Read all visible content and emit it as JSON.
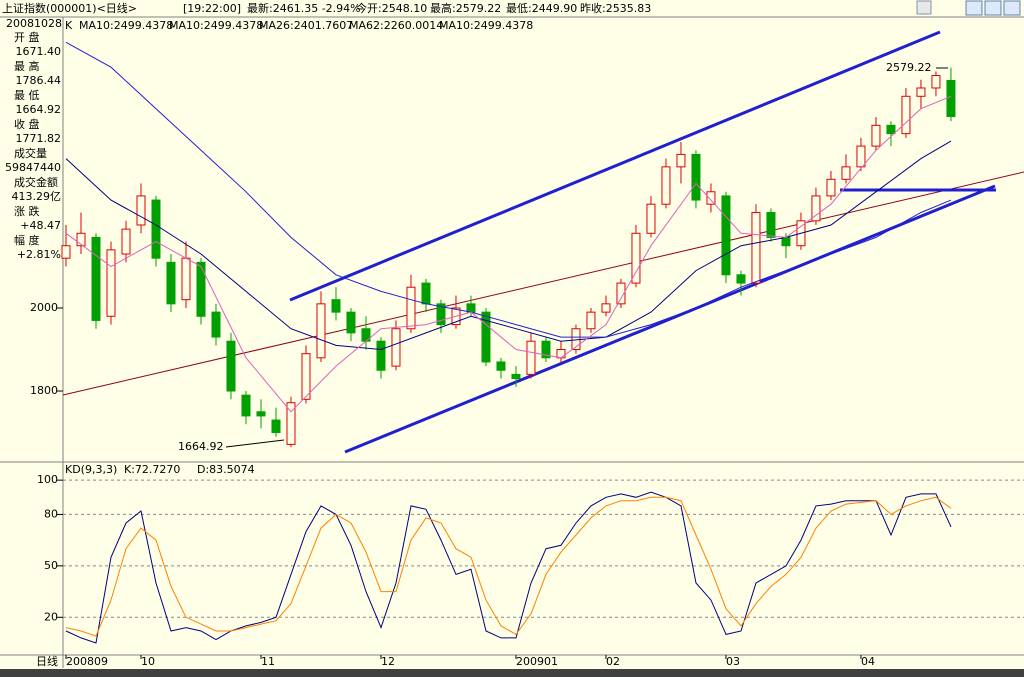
{
  "header": {
    "title": "上证指数(000001)<日线>",
    "time": "[19:22:00]",
    "latest": "最新:2461.35 -2.94%",
    "open": "今开:2548.10",
    "high": "最高:2579.22",
    "low": "最低:2449.90",
    "prev_close": "昨收:2535.83"
  },
  "info_panel": {
    "date": "20081028",
    "rows": [
      [
        "开 盘",
        "1671.40"
      ],
      [
        "最 高",
        "1786.44"
      ],
      [
        "最 低",
        "1664.92"
      ],
      [
        "收 盘",
        "1771.82"
      ],
      [
        "成交量",
        "59847440"
      ],
      [
        "成交金额",
        "413.29亿"
      ],
      [
        "涨 跌",
        "+48.47"
      ],
      [
        "幅 度",
        "+2.81%"
      ]
    ]
  },
  "x_axis_label": "日线",
  "chart_data": [
    {
      "type": "candlestick",
      "legend_prefix": "K",
      "legend_other": [
        {
          "name": "MA10:2499.4378",
          "color": "#000000"
        },
        {
          "name": "MA10:2499.4378",
          "color": "#ff8000"
        }
      ],
      "up_color": "#e00000",
      "down_color": "#00a000",
      "candles": [
        [
          2120,
          2200,
          2100,
          2150
        ],
        [
          2150,
          2230,
          2130,
          2180
        ],
        [
          2170,
          2180,
          1950,
          1970
        ],
        [
          1980,
          2160,
          1960,
          2140
        ],
        [
          2130,
          2210,
          2110,
          2190
        ],
        [
          2200,
          2300,
          2180,
          2270
        ],
        [
          2260,
          2270,
          2100,
          2120
        ],
        [
          2110,
          2130,
          1990,
          2010
        ],
        [
          2020,
          2160,
          2000,
          2120
        ],
        [
          2110,
          2120,
          1960,
          1980
        ],
        [
          1990,
          2010,
          1910,
          1930
        ],
        [
          1920,
          1940,
          1780,
          1800
        ],
        [
          1790,
          1800,
          1720,
          1740
        ],
        [
          1750,
          1780,
          1710,
          1740
        ],
        [
          1730,
          1760,
          1690,
          1700
        ],
        [
          1671.4,
          1786.44,
          1664.92,
          1771.82
        ],
        [
          1780,
          1910,
          1770,
          1890
        ],
        [
          1880,
          2040,
          1870,
          2010
        ],
        [
          2020,
          2050,
          1970,
          1990
        ],
        [
          1990,
          2000,
          1920,
          1940
        ],
        [
          1950,
          1980,
          1900,
          1920
        ],
        [
          1920,
          1930,
          1830,
          1850
        ],
        [
          1860,
          1970,
          1850,
          1950
        ],
        [
          1950,
          2080,
          1940,
          2050
        ],
        [
          2060,
          2070,
          1990,
          2010
        ],
        [
          2010,
          2020,
          1940,
          1960
        ],
        [
          1960,
          2030,
          1950,
          2000
        ],
        [
          2010,
          2030,
          1980,
          1990
        ],
        [
          1990,
          2000,
          1860,
          1870
        ],
        [
          1870,
          1880,
          1830,
          1850
        ],
        [
          1840,
          1860,
          1810,
          1830
        ],
        [
          1840,
          1940,
          1830,
          1920
        ],
        [
          1920,
          1930,
          1870,
          1880
        ],
        [
          1880,
          1920,
          1870,
          1900
        ],
        [
          1900,
          1960,
          1890,
          1950
        ],
        [
          1950,
          2000,
          1940,
          1990
        ],
        [
          1990,
          2030,
          1980,
          2010
        ],
        [
          2010,
          2070,
          2000,
          2060
        ],
        [
          2060,
          2200,
          2050,
          2180
        ],
        [
          2180,
          2270,
          2170,
          2250
        ],
        [
          2250,
          2360,
          2240,
          2340
        ],
        [
          2340,
          2400,
          2300,
          2370
        ],
        [
          2370,
          2380,
          2240,
          2260
        ],
        [
          2250,
          2300,
          2230,
          2280
        ],
        [
          2270,
          2280,
          2060,
          2080
        ],
        [
          2080,
          2090,
          2030,
          2060
        ],
        [
          2060,
          2250,
          2050,
          2230
        ],
        [
          2230,
          2240,
          2160,
          2170
        ],
        [
          2170,
          2180,
          2120,
          2150
        ],
        [
          2150,
          2230,
          2140,
          2210
        ],
        [
          2210,
          2290,
          2200,
          2270
        ],
        [
          2270,
          2330,
          2260,
          2310
        ],
        [
          2310,
          2370,
          2300,
          2340
        ],
        [
          2340,
          2410,
          2330,
          2390
        ],
        [
          2390,
          2460,
          2380,
          2440
        ],
        [
          2440,
          2450,
          2390,
          2420
        ],
        [
          2420,
          2530,
          2410,
          2510
        ],
        [
          2510,
          2550,
          2480,
          2530
        ],
        [
          2530,
          2570,
          2510,
          2560
        ],
        [
          2548.1,
          2579.22,
          2449.9,
          2461.35
        ]
      ],
      "series": [
        {
          "name": "MA26:2401.7607",
          "color": "#000080",
          "x": [
            0,
            3,
            6,
            9,
            12,
            15,
            18,
            21,
            24,
            27,
            30,
            33,
            36,
            39,
            42,
            45,
            48,
            51,
            54,
            57,
            59
          ],
          "values": [
            2360,
            2260,
            2200,
            2130,
            2040,
            1950,
            1910,
            1900,
            1940,
            1980,
            1950,
            1920,
            1930,
            1990,
            2090,
            2150,
            2170,
            2200,
            2280,
            2360,
            2402
          ]
        },
        {
          "name": "MA62:2260.0014",
          "color": "#2020d0",
          "x": [
            0,
            3,
            6,
            9,
            12,
            15,
            18,
            21,
            24,
            27,
            30,
            33,
            36,
            39,
            42,
            45,
            48,
            51,
            54,
            57,
            59
          ],
          "values": [
            2640,
            2580,
            2480,
            2380,
            2280,
            2170,
            2080,
            2040,
            2010,
            1990,
            1960,
            1930,
            1930,
            1960,
            2000,
            2050,
            2090,
            2130,
            2170,
            2230,
            2260
          ]
        },
        {
          "name": "MA10:2499.4378",
          "color": "#e060c0",
          "x": [
            0,
            3,
            6,
            9,
            12,
            15,
            18,
            21,
            24,
            27,
            30,
            33,
            36,
            39,
            42,
            45,
            48,
            51,
            54,
            57,
            59
          ],
          "values": [
            2180,
            2100,
            2160,
            2100,
            1880,
            1750,
            1860,
            1950,
            1960,
            1990,
            1900,
            1880,
            1960,
            2150,
            2300,
            2180,
            2170,
            2250,
            2380,
            2480,
            2510
          ]
        }
      ],
      "annotations": [
        "2579.22",
        "1664.92"
      ],
      "xlim": [
        -0.2,
        63.87
      ],
      "ylim": [
        1629,
        2701
      ],
      "yticks": [
        1800,
        2000
      ],
      "xlabels": [
        {
          "value": 0,
          "label": "200809"
        },
        {
          "value": 5,
          "label": "10"
        },
        {
          "value": 13,
          "label": "11"
        },
        {
          "value": 21,
          "label": "12"
        },
        {
          "value": 30,
          "label": "200901"
        },
        {
          "value": 36,
          "label": "02"
        },
        {
          "value": 44,
          "label": "03"
        },
        {
          "value": 53,
          "label": "04"
        }
      ]
    },
    {
      "type": "line",
      "title": "KD(9,3,3)",
      "series": [
        {
          "name": "K:72.7270",
          "color": "#000080",
          "values": [
            12,
            8,
            5,
            55,
            75,
            82,
            40,
            12,
            14,
            12,
            7,
            12,
            15,
            17,
            20,
            45,
            70,
            85,
            80,
            62,
            35,
            14,
            40,
            85,
            83,
            65,
            45,
            48,
            12,
            8,
            8,
            40,
            60,
            62,
            75,
            85,
            90,
            92,
            90,
            93,
            90,
            85,
            40,
            30,
            10,
            12,
            40,
            45,
            50,
            65,
            85,
            86,
            88,
            88,
            88,
            68,
            90,
            92,
            92,
            72.727
          ]
        },
        {
          "name": "D:83.5074",
          "color": "#ff8000",
          "values": [
            14,
            12,
            9,
            30,
            60,
            72,
            65,
            38,
            20,
            16,
            12,
            12,
            14,
            16,
            18,
            28,
            50,
            72,
            80,
            75,
            58,
            35,
            35,
            65,
            78,
            75,
            60,
            55,
            30,
            15,
            10,
            22,
            45,
            58,
            68,
            78,
            85,
            88,
            88,
            90,
            90,
            88,
            68,
            48,
            25,
            15,
            28,
            38,
            45,
            55,
            72,
            82,
            86,
            87,
            88,
            80,
            85,
            88,
            90,
            83.5074
          ]
        }
      ],
      "xlim": [
        -0.2,
        63.87
      ],
      "ylim": [
        -2,
        110
      ],
      "yticks": [
        20,
        50,
        80,
        100
      ],
      "grid": true
    }
  ]
}
